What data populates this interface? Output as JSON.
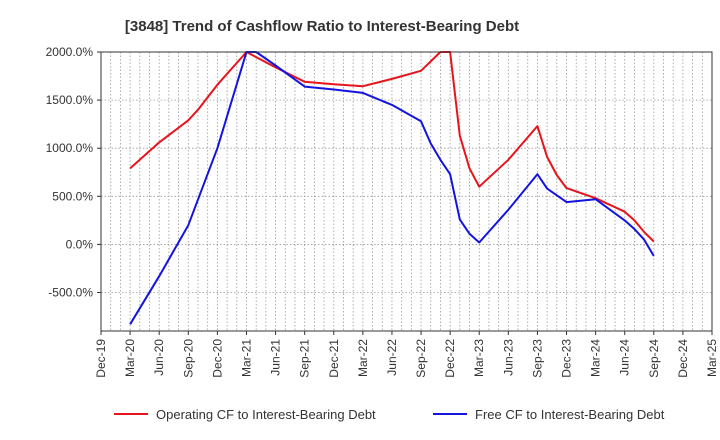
{
  "chart_data": {
    "type": "line",
    "title": "[3848]  Trend of Cashflow Ratio to Interest-Bearing Debt",
    "xlabel": "",
    "ylabel": "",
    "x_tick_labels": [
      "Dec-19",
      "Mar-20",
      "Jun-20",
      "Sep-20",
      "Dec-20",
      "Mar-21",
      "Jun-21",
      "Sep-21",
      "Dec-21",
      "Mar-22",
      "Jun-22",
      "Sep-22",
      "Dec-22",
      "Mar-23",
      "Jun-23",
      "Sep-23",
      "Dec-23",
      "Mar-24",
      "Jun-24",
      "Sep-24",
      "Dec-24",
      "Mar-25"
    ],
    "y_ticks": [
      2000,
      1500,
      1000,
      500,
      0,
      -500
    ],
    "y_tick_labels": [
      "2000.0%",
      "1500.0%",
      "1000.0%",
      "500.0%",
      "0.0%",
      "-500.0%"
    ],
    "ylim": [
      -900,
      2000
    ],
    "x_range": [
      "Dec-19",
      "Mar-25"
    ],
    "grid": true,
    "legend_position": "bottom",
    "series": [
      {
        "name": "Operating CF to Interest-Bearing Debt",
        "color": "#e8141c",
        "points": [
          {
            "x": "Mar-20",
            "y": 790
          },
          {
            "x": "Jun-20",
            "y": 1060
          },
          {
            "x": "Sep-20",
            "y": 1290
          },
          {
            "x": "Oct-20",
            "y": 1400
          },
          {
            "x": "Nov-20",
            "y": 1530
          },
          {
            "x": "Dec-20",
            "y": 1660
          },
          {
            "x": "Mar-21",
            "y": 2000
          },
          {
            "x": "Jun-21",
            "y": 1840
          },
          {
            "x": "Sep-21",
            "y": 1690
          },
          {
            "x": "Dec-21",
            "y": 1665
          },
          {
            "x": "Mar-22",
            "y": 1645
          },
          {
            "x": "Jun-22",
            "y": 1720
          },
          {
            "x": "Sep-22",
            "y": 1805
          },
          {
            "x": "Nov-22",
            "y": 2000
          },
          {
            "x": "Dec-22",
            "y": 2000
          },
          {
            "x": "Jan-23",
            "y": 1130
          },
          {
            "x": "Feb-23",
            "y": 790
          },
          {
            "x": "Mar-23",
            "y": 600
          },
          {
            "x": "Jun-23",
            "y": 880
          },
          {
            "x": "Sep-23",
            "y": 1230
          },
          {
            "x": "Oct-23",
            "y": 910
          },
          {
            "x": "Nov-23",
            "y": 720
          },
          {
            "x": "Dec-23",
            "y": 585
          },
          {
            "x": "Mar-24",
            "y": 480
          },
          {
            "x": "Jun-24",
            "y": 340
          },
          {
            "x": "Jul-24",
            "y": 250
          },
          {
            "x": "Aug-24",
            "y": 130
          },
          {
            "x": "Sep-24",
            "y": 30
          }
        ]
      },
      {
        "name": "Free CF to Interest-Bearing Debt",
        "color": "#1414e0",
        "points": [
          {
            "x": "Mar-20",
            "y": -830
          },
          {
            "x": "Jun-20",
            "y": -330
          },
          {
            "x": "Sep-20",
            "y": 200
          },
          {
            "x": "Dec-20",
            "y": 1000
          },
          {
            "x": "Mar-21",
            "y": 2000
          },
          {
            "x": "Apr-21",
            "y": 2000
          },
          {
            "x": "Jun-21",
            "y": 1860
          },
          {
            "x": "Sep-21",
            "y": 1640
          },
          {
            "x": "Dec-21",
            "y": 1610
          },
          {
            "x": "Mar-22",
            "y": 1575
          },
          {
            "x": "Jun-22",
            "y": 1450
          },
          {
            "x": "Sep-22",
            "y": 1280
          },
          {
            "x": "Oct-22",
            "y": 1050
          },
          {
            "x": "Nov-22",
            "y": 880
          },
          {
            "x": "Dec-22",
            "y": 730
          },
          {
            "x": "Jan-23",
            "y": 260
          },
          {
            "x": "Feb-23",
            "y": 110
          },
          {
            "x": "Mar-23",
            "y": 20
          },
          {
            "x": "Jun-23",
            "y": 360
          },
          {
            "x": "Sep-23",
            "y": 730
          },
          {
            "x": "Oct-23",
            "y": 580
          },
          {
            "x": "Nov-23",
            "y": 510
          },
          {
            "x": "Dec-23",
            "y": 440
          },
          {
            "x": "Mar-24",
            "y": 470
          },
          {
            "x": "Jun-24",
            "y": 250
          },
          {
            "x": "Jul-24",
            "y": 160
          },
          {
            "x": "Aug-24",
            "y": 50
          },
          {
            "x": "Sep-24",
            "y": -120
          }
        ]
      }
    ]
  }
}
